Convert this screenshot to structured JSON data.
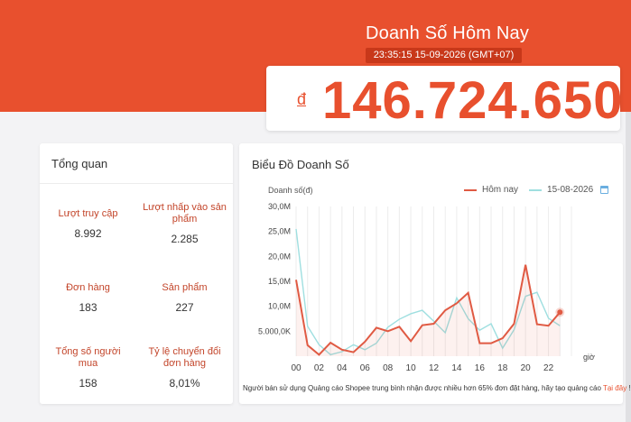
{
  "header": {
    "title": "Doanh Số Hôm Nay",
    "timestamp": "23:35:15 15-09-2026 (GMT+07)",
    "currency_symbol": "đ",
    "revenue": "146.724.650",
    "accent_color": "#e8502e"
  },
  "overview": {
    "title": "Tổng quan",
    "stats": [
      {
        "label": "Lượt truy cập",
        "value": "8.992"
      },
      {
        "label": "Lượt nhấp vào sản phẩm",
        "value": "2.285"
      },
      {
        "label": "Đơn hàng",
        "value": "183"
      },
      {
        "label": "Sản phẩm",
        "value": "227"
      },
      {
        "label": "Tổng số người mua",
        "value": "158"
      },
      {
        "label": "Tỷ lệ chuyển đổi đơn hàng",
        "value": "8,01%"
      }
    ]
  },
  "chart_section": {
    "title": "Biểu Đồ Doanh Số",
    "footer_text": "Người bán sử dụng Quảng cáo Shopee trung bình nhận được nhiều hơn 65% đơn đặt hàng, hãy tạo quảng cáo ",
    "footer_link": "Tại đây",
    "footer_end": " !"
  },
  "chart_data": {
    "type": "line",
    "ylabel": "Doanh số(đ)",
    "xlabel": "giờ",
    "x": [
      0,
      1,
      2,
      3,
      4,
      5,
      6,
      7,
      8,
      9,
      10,
      11,
      12,
      13,
      14,
      15,
      16,
      17,
      18,
      19,
      20,
      21,
      22,
      23
    ],
    "x_ticks": [
      "00",
      "02",
      "04",
      "06",
      "08",
      "10",
      "12",
      "14",
      "16",
      "18",
      "20",
      "22"
    ],
    "y_ticks": [
      "",
      "5.000,0K",
      "10,0M",
      "15,0M",
      "20,0M",
      "25,0M",
      "30,0M"
    ],
    "ylim": [
      0,
      30000000
    ],
    "grid": "vertical",
    "legend_position": "top-right",
    "series": [
      {
        "name": "Hôm nay",
        "color": "#e05a43",
        "values": [
          15300000,
          2200000,
          300000,
          2700000,
          1300000,
          800000,
          2900000,
          5700000,
          5000000,
          5900000,
          3000000,
          6200000,
          6500000,
          9200000,
          10600000,
          12700000,
          2600000,
          2600000,
          3600000,
          6500000,
          18300000,
          6400000,
          6100000,
          8800000
        ]
      },
      {
        "name": "15-08-2026",
        "color": "#9fdfe0",
        "values": [
          25500000,
          6000000,
          2300000,
          300000,
          900000,
          2300000,
          1300000,
          2600000,
          5800000,
          7400000,
          8500000,
          9200000,
          7000000,
          4700000,
          11700000,
          7500000,
          5200000,
          6500000,
          1600000,
          5300000,
          12000000,
          12800000,
          7600000,
          6100000
        ]
      }
    ]
  }
}
